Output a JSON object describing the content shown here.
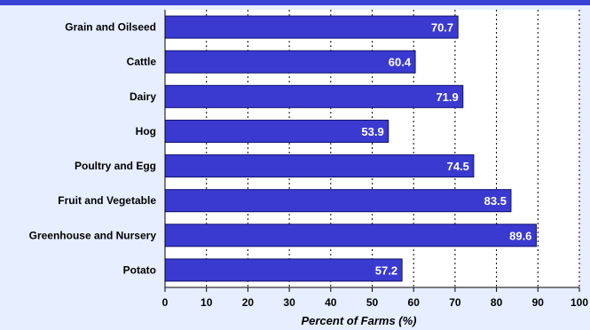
{
  "colors": {
    "background": "#e6eeff",
    "plot_area": "#ffffff",
    "bar_fill": "#3a3ad0",
    "bar_stroke": "#10106e",
    "top_band": "#3b43d6",
    "text": "#000000",
    "value_text": "#ffffff"
  },
  "chart_data": {
    "type": "bar",
    "orientation": "horizontal",
    "title": "",
    "xlabel": "Percent of Farms (%)",
    "ylabel": "",
    "categories": [
      "Grain and Oilseed",
      "Cattle",
      "Dairy",
      "Hog",
      "Poultry and Egg",
      "Fruit and Vegetable",
      "Greenhouse and Nursery",
      "Potato"
    ],
    "values": [
      70.7,
      60.4,
      71.9,
      53.9,
      74.5,
      83.5,
      89.6,
      57.2
    ],
    "data_labels": [
      "70.7",
      "60.4",
      "71.9",
      "53.9",
      "74.5",
      "83.5",
      "89.6",
      "57.2"
    ],
    "xlim": [
      0,
      100
    ],
    "xticks": [
      "0",
      "10",
      "20",
      "30",
      "40",
      "50",
      "60",
      "70",
      "80",
      "90",
      "100"
    ],
    "grid": "vertical dotted",
    "legend": "none"
  }
}
